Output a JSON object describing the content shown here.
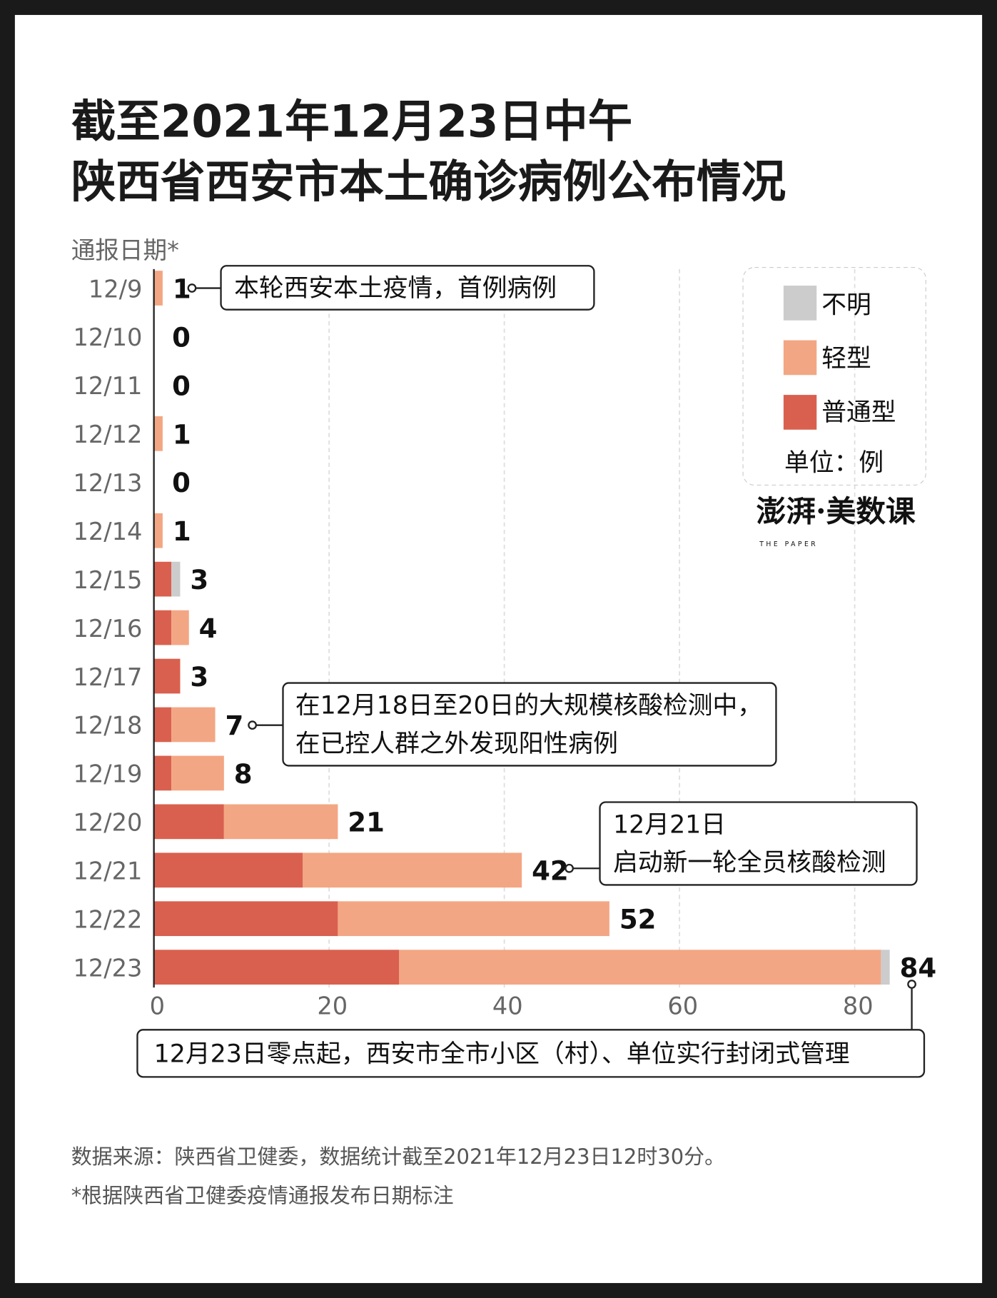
{
  "title_line1": "截至2021年12月23日中午",
  "title_line2": "陕西省西安市本土确诊病例公布情况",
  "colors": {
    "unknown": "#cccccc",
    "mild": "#f3a683",
    "moderate": "#d9604e"
  },
  "chart_data": {
    "type": "bar",
    "orientation": "horizontal",
    "stacked": true,
    "ylabel": "通报日期*",
    "categories": [
      "12/9",
      "12/10",
      "12/11",
      "12/12",
      "12/13",
      "12/14",
      "12/15",
      "12/16",
      "12/17",
      "12/18",
      "12/19",
      "12/20",
      "12/21",
      "12/22",
      "12/23"
    ],
    "series": [
      {
        "name": "普通型",
        "values": [
          0,
          0,
          0,
          0,
          0,
          0,
          2,
          2,
          3,
          2,
          2,
          8,
          17,
          21,
          28
        ]
      },
      {
        "name": "轻型",
        "values": [
          1,
          0,
          0,
          1,
          0,
          1,
          0,
          2,
          0,
          5,
          6,
          13,
          25,
          31,
          55
        ]
      },
      {
        "name": "不明",
        "values": [
          0,
          0,
          0,
          0,
          0,
          0,
          1,
          0,
          0,
          0,
          0,
          0,
          0,
          0,
          1
        ]
      }
    ],
    "totals": [
      1,
      0,
      0,
      1,
      0,
      1,
      3,
      4,
      3,
      7,
      8,
      21,
      42,
      52,
      84
    ],
    "xlim": [
      0,
      85
    ],
    "xticks": [
      0,
      20,
      40,
      60,
      80
    ],
    "grid": "vertical dashed",
    "legend_position": "top-right",
    "unit": "单位：例"
  },
  "annotations": {
    "a1": "本轮西安本土疫情，首例病例",
    "a2_line1": "在12月18日至20日的大规模核酸检测中，",
    "a2_line2": "在已控人群之外发现阳性病例",
    "a3_line1": "12月21日",
    "a3_line2": "启动新一轮全员核酸检测",
    "a4": "12月23日零点起，西安市全市小区（村）、单位实行封闭式管理"
  },
  "logo": "澎湃·美数课",
  "logo_sub": "THE PAPER",
  "footer_line1": "数据来源：陕西省卫健委，数据统计截至2021年12月23日12时30分。",
  "footer_line2": "*根据陕西省卫健委疫情通报发布日期标注"
}
